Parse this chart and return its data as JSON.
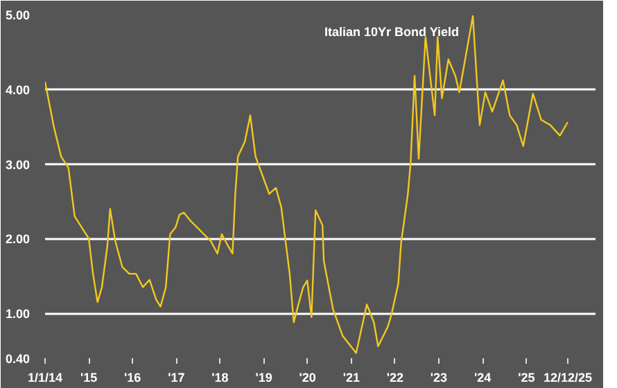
{
  "chart_data": {
    "type": "line",
    "title": "Italian 10Yr Bond Yield",
    "x": [
      "2014-01-01",
      "2014-03-15",
      "2014-05-15",
      "2014-07-15",
      "2014-09-05",
      "2015-01-01",
      "2015-02-05",
      "2015-03-15",
      "2015-04-20",
      "2015-06-05",
      "2015-06-28",
      "2015-08-10",
      "2015-10-08",
      "2015-12-05",
      "2016-01-30",
      "2016-03-28",
      "2016-05-22",
      "2016-07-18",
      "2016-08-22",
      "2016-10-05",
      "2016-11-10",
      "2016-12-25",
      "2017-01-27",
      "2017-03-04",
      "2017-04-28",
      "2017-06-25",
      "2017-08-18",
      "2017-10-15",
      "2017-12-10",
      "2018-01-15",
      "2018-03-10",
      "2018-04-15",
      "2018-05-08",
      "2018-05-30",
      "2018-07-27",
      "2018-09-10",
      "2018-10-24",
      "2018-12-20",
      "2019-02-15",
      "2019-04-12",
      "2019-05-27",
      "2019-07-01",
      "2019-08-05",
      "2019-09-08",
      "2019-10-12",
      "2019-11-25",
      "2019-12-30",
      "2020-02-03",
      "2020-03-08",
      "2020-05-05",
      "2020-05-16",
      "2020-08-02",
      "2020-10-20",
      "2020-12-28",
      "2021-02-10",
      "2021-05-10",
      "2021-07-08",
      "2021-08-12",
      "2021-11-01",
      "2021-12-04",
      "2022-01-28",
      "2022-02-20",
      "2022-04-17",
      "2022-05-10",
      "2022-06-13",
      "2022-07-17",
      "2022-09-12",
      "2022-11-28",
      "2022-12-22",
      "2023-01-27",
      "2023-03-22",
      "2023-05-19",
      "2023-06-21",
      "2023-08-18",
      "2023-10-12",
      "2023-12-08",
      "2024-01-24",
      "2024-03-22",
      "2024-06-20",
      "2024-08-15",
      "2024-10-12",
      "2024-12-06",
      "2025-02-25",
      "2025-05-05",
      "2025-07-20",
      "2025-10-08",
      "2025-12-12"
    ],
    "series": [
      {
        "color": "#f2c81f",
        "values": [
          4.1,
          3.5,
          3.1,
          2.95,
          2.3,
          2.0,
          1.53,
          1.15,
          1.35,
          1.9,
          2.4,
          1.97,
          1.62,
          1.53,
          1.53,
          1.35,
          1.45,
          1.18,
          1.09,
          1.35,
          2.06,
          2.15,
          2.32,
          2.35,
          2.24,
          2.15,
          2.06,
          1.97,
          1.8,
          2.06,
          1.9,
          1.8,
          2.6,
          3.1,
          3.3,
          3.65,
          3.1,
          2.85,
          2.6,
          2.68,
          2.42,
          1.97,
          1.53,
          0.88,
          1.09,
          1.35,
          1.44,
          0.95,
          2.38,
          2.18,
          1.7,
          1.05,
          0.7,
          0.56,
          0.47,
          1.12,
          0.88,
          0.56,
          0.82,
          1.0,
          1.4,
          1.94,
          2.59,
          3.0,
          4.18,
          3.07,
          4.7,
          3.65,
          4.7,
          3.88,
          4.4,
          4.18,
          3.96,
          4.48,
          4.98,
          3.52,
          3.96,
          3.7,
          4.12,
          3.65,
          3.52,
          3.24,
          3.94,
          3.59,
          3.52,
          3.38,
          3.56
        ]
      }
    ],
    "xlim": [
      "2014-01-01",
      "2026-08-01"
    ],
    "xticks": [
      {
        "value": "2014-01-01",
        "label": "1/1/14"
      },
      {
        "value": "2015-01-01",
        "label": "'15"
      },
      {
        "value": "2016-01-01",
        "label": "'16"
      },
      {
        "value": "2017-01-01",
        "label": "'17"
      },
      {
        "value": "2018-01-01",
        "label": "'18"
      },
      {
        "value": "2019-01-01",
        "label": "'19"
      },
      {
        "value": "2020-01-01",
        "label": "'20"
      },
      {
        "value": "2021-01-01",
        "label": "'21"
      },
      {
        "value": "2022-01-01",
        "label": "'22"
      },
      {
        "value": "2023-01-01",
        "label": "'23"
      },
      {
        "value": "2024-01-01",
        "label": "'24"
      },
      {
        "value": "2025-01-01",
        "label": "'25"
      },
      {
        "value": "2025-12-12",
        "label": "12/12/25"
      }
    ],
    "ylim": [
      0.4,
      5.0
    ],
    "yticks": [
      {
        "value": 0.4,
        "label": "0.40"
      },
      {
        "value": 1,
        "label": "1.00"
      },
      {
        "value": 2,
        "label": "2.00"
      },
      {
        "value": 3,
        "label": "3.00"
      },
      {
        "value": 4,
        "label": "4.00"
      },
      {
        "value": 5,
        "label": "5.00"
      }
    ],
    "grid": "y",
    "marker": "none",
    "line_style": "solid"
  }
}
